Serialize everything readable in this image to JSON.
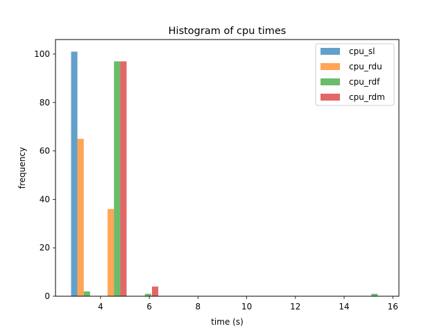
{
  "chart_data": {
    "type": "bar",
    "title": "Histogram of cpu times",
    "xlabel": "time (s)",
    "ylabel": "frequency",
    "xlim": [
      2.15,
      16.25
    ],
    "ylim": [
      0,
      106
    ],
    "xticks": [
      4,
      6,
      8,
      10,
      12,
      14,
      16
    ],
    "yticks": [
      0,
      20,
      40,
      60,
      80,
      100
    ],
    "grid": false,
    "legend_position": "top-right",
    "bar_width": 0.26,
    "series": [
      {
        "name": "cpu_sl",
        "color": "#1f77b4",
        "bars": [
          {
            "x": 2.92,
            "value": 101
          }
        ]
      },
      {
        "name": "cpu_rdu",
        "color": "#ff7f0e",
        "bars": [
          {
            "x": 3.18,
            "value": 65
          },
          {
            "x": 4.42,
            "value": 36
          }
        ]
      },
      {
        "name": "cpu_rdf",
        "color": "#2ca02c",
        "bars": [
          {
            "x": 3.44,
            "value": 2
          },
          {
            "x": 4.68,
            "value": 97
          },
          {
            "x": 5.95,
            "value": 1
          },
          {
            "x": 15.25,
            "value": 1
          }
        ]
      },
      {
        "name": "cpu_rdm",
        "color": "#d62728",
        "bars": [
          {
            "x": 4.94,
            "value": 97
          },
          {
            "x": 6.24,
            "value": 4
          }
        ]
      }
    ]
  }
}
